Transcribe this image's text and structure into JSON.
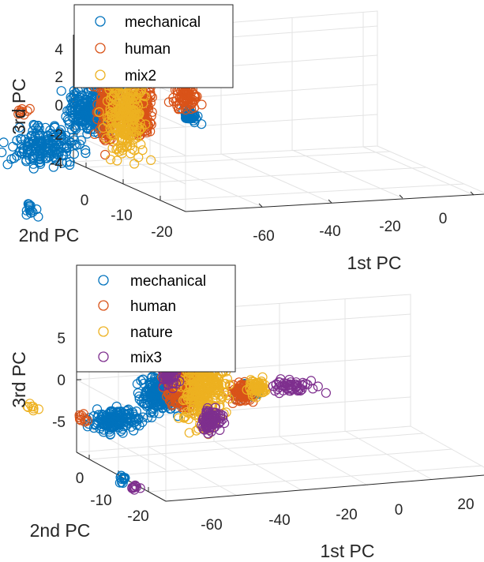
{
  "chart_data": [
    {
      "type": "scatter",
      "projection": "3d",
      "grid": true,
      "xlabel": "1st PC",
      "ylabel": "2nd PC",
      "zlabel": "3rd PC",
      "xticks": [
        "-60",
        "-40",
        "-20",
        "0"
      ],
      "yticks": [
        "0",
        "-10",
        "-20"
      ],
      "zticks": [
        "4",
        "2",
        "0",
        "-2",
        "-4"
      ],
      "xlim": [
        -70,
        10
      ],
      "ylim": [
        -25,
        5
      ],
      "zlim": [
        -5,
        5
      ],
      "legend_position": "top-left",
      "series": [
        {
          "name": "mechanical",
          "color": "#0072BD",
          "clusters": [
            {
              "x": [
                -75,
                -45
              ],
              "y": [
                -12,
                -8
              ],
              "z": [
                -2.5,
                1.5
              ],
              "n": 180
            },
            {
              "x": [
                -50,
                -30
              ],
              "y": [
                -6,
                0
              ],
              "z": [
                -1.5,
                3.0
              ],
              "n": 240
            },
            {
              "x": [
                -34,
                -28
              ],
              "y": [
                -4,
                2
              ],
              "z": [
                1.0,
                4.0
              ],
              "n": 60
            },
            {
              "x": [
                -16,
                -10
              ],
              "y": [
                -6,
                -2
              ],
              "z": [
                -0.6,
                0.6
              ],
              "n": 50
            },
            {
              "x": [
                -72,
                -68
              ],
              "y": [
                -18,
                -14
              ],
              "z": [
                -4.8,
                -3.5
              ],
              "n": 14
            }
          ]
        },
        {
          "name": "human",
          "color": "#D95319",
          "clusters": [
            {
              "x": [
                -38,
                -30
              ],
              "y": [
                -5,
                0
              ],
              "z": [
                -3.0,
                4.8
              ],
              "n": 180
            },
            {
              "x": [
                -28,
                -18
              ],
              "y": [
                -3,
                3
              ],
              "z": [
                -3.0,
                3.0
              ],
              "n": 220
            },
            {
              "x": [
                -16,
                -8
              ],
              "y": [
                -4,
                0
              ],
              "z": [
                -0.5,
                3.0
              ],
              "n": 90
            },
            {
              "x": [
                -55,
                -50
              ],
              "y": [
                2,
                4
              ],
              "z": [
                -0.5,
                1.0
              ],
              "n": 10
            }
          ]
        },
        {
          "name": "mix2",
          "color": "#EDB120",
          "clusters": [
            {
              "x": [
                -36,
                -20
              ],
              "y": [
                -4,
                2
              ],
              "z": [
                -4.5,
                4.5
              ],
              "n": 260
            },
            {
              "x": [
                -28,
                -16
              ],
              "y": [
                -2,
                2
              ],
              "z": [
                2.0,
                4.5
              ],
              "n": 40
            },
            {
              "x": [
                -62,
                -58
              ],
              "y": [
                12,
                16
              ],
              "z": [
                -2.5,
                0.0
              ],
              "n": 12
            }
          ]
        }
      ]
    },
    {
      "type": "scatter",
      "projection": "3d",
      "grid": true,
      "xlabel": "1st PC",
      "ylabel": "2nd PC",
      "zlabel": "3rd PC",
      "xticks": [
        "-60",
        "-40",
        "-20",
        "0",
        "20"
      ],
      "yticks": [
        "0",
        "-10",
        "-20"
      ],
      "zticks": [
        "5",
        "0",
        "-5"
      ],
      "xlim": [
        -70,
        25
      ],
      "ylim": [
        -25,
        5
      ],
      "zlim": [
        -8,
        8
      ],
      "legend_position": "top-left",
      "series": [
        {
          "name": "mechanical",
          "color": "#0072BD",
          "clusters": [
            {
              "x": [
                -70,
                -45
              ],
              "y": [
                -12,
                -6
              ],
              "z": [
                -3.5,
                0.5
              ],
              "n": 160
            },
            {
              "x": [
                -48,
                -30
              ],
              "y": [
                -6,
                0
              ],
              "z": [
                -3.0,
                3.0
              ],
              "n": 200
            },
            {
              "x": [
                -16,
                -8
              ],
              "y": [
                -4,
                0
              ],
              "z": [
                -2.0,
                0.5
              ],
              "n": 40
            },
            {
              "x": [
                -68,
                -64
              ],
              "y": [
                -22,
                -18
              ],
              "z": [
                -7.0,
                -5.0
              ],
              "n": 12
            }
          ]
        },
        {
          "name": "human",
          "color": "#D95319",
          "clusters": [
            {
              "x": [
                -38,
                -22
              ],
              "y": [
                -3,
                2
              ],
              "z": [
                -4.0,
                4.0
              ],
              "n": 220
            },
            {
              "x": [
                -18,
                -8
              ],
              "y": [
                -4,
                0
              ],
              "z": [
                -2.5,
                1.0
              ],
              "n": 80
            },
            {
              "x": [
                -66,
                -62
              ],
              "y": [
                -6,
                -3
              ],
              "z": [
                -3.0,
                -1.0
              ],
              "n": 10
            }
          ]
        },
        {
          "name": "nature",
          "color": "#EDB120",
          "clusters": [
            {
              "x": [
                -34,
                -14
              ],
              "y": [
                -4,
                2
              ],
              "z": [
                -7.0,
                7.0
              ],
              "n": 320
            },
            {
              "x": [
                -12,
                -4
              ],
              "y": [
                -3,
                0
              ],
              "z": [
                -2.0,
                1.0
              ],
              "n": 60
            },
            {
              "x": [
                -72,
                -68
              ],
              "y": [
                4,
                8
              ],
              "z": [
                -3.0,
                -2.0
              ],
              "n": 8
            }
          ]
        },
        {
          "name": "mix3",
          "color": "#7E2F8E",
          "clusters": [
            {
              "x": [
                -38,
                -30
              ],
              "y": [
                -2,
                2
              ],
              "z": [
                -1.0,
                5.0
              ],
              "n": 90
            },
            {
              "x": [
                -26,
                -16
              ],
              "y": [
                -2,
                2
              ],
              "z": [
                -6.5,
                -2.0
              ],
              "n": 90
            },
            {
              "x": [
                -10,
                15
              ],
              "y": [
                -4,
                0
              ],
              "z": [
                -2.0,
                1.0
              ],
              "n": 50
            },
            {
              "x": [
                -66,
                -62
              ],
              "y": [
                -24,
                -20
              ],
              "z": [
                -7.5,
                -6.0
              ],
              "n": 10
            }
          ]
        }
      ]
    }
  ]
}
